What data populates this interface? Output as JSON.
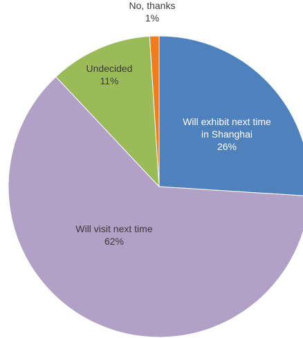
{
  "chart_data": {
    "type": "pie",
    "slices": [
      {
        "label_lines": [
          "Will exhibit next time",
          "in Shanghai"
        ],
        "percent_text": "26%",
        "value": 26,
        "color": "#4f81bd"
      },
      {
        "label_lines": [
          "Will visit next time"
        ],
        "percent_text": "62%",
        "value": 62,
        "color": "#b1a1c7"
      },
      {
        "label_lines": [
          "Undecided"
        ],
        "percent_text": "11%",
        "value": 11,
        "color": "#9bbb59"
      },
      {
        "label_lines": [
          "No, thanks"
        ],
        "percent_text": "1%",
        "value": 1,
        "color": "#f07c1e"
      }
    ],
    "start": "12 o'clock",
    "direction": "clockwise",
    "labels": "inside",
    "legend": "none"
  }
}
